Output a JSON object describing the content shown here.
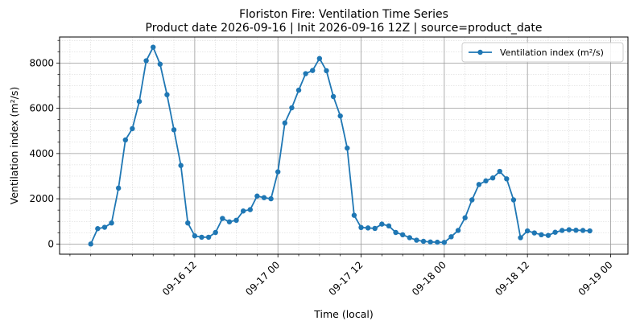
{
  "chart_data": {
    "type": "line",
    "title": "Floriston Fire: Ventilation Time Series",
    "subtitle": "Product date 2026-09-16 | Init 2026-09-16 12Z | source=product_date",
    "xlabel": "Time (local)",
    "ylabel": "Ventilation index (m²/s)",
    "x_tick_labels": [
      "09-16 12",
      "09-17 00",
      "09-17 12",
      "09-18 00",
      "09-18 12",
      "09-19 00"
    ],
    "y_ticks": [
      0,
      2000,
      4000,
      6000,
      8000
    ],
    "ylim": [
      -450,
      9150
    ],
    "xlim": [
      -7.5,
      74.5
    ],
    "x_unit": "hours since 09-16 00 (local)",
    "grid": true,
    "legend_position": "top-right",
    "series": [
      {
        "name": "Ventilation index (m²/s)",
        "color": "#1f77b4",
        "marker": "circle",
        "points": [
          [
            -3,
            0
          ],
          [
            -2,
            680
          ],
          [
            -1,
            740
          ],
          [
            0,
            930
          ],
          [
            1,
            2470
          ],
          [
            2,
            4600
          ],
          [
            3,
            5100
          ],
          [
            4,
            6300
          ],
          [
            5,
            8100
          ],
          [
            6,
            8700
          ],
          [
            7,
            7950
          ],
          [
            8,
            6600
          ],
          [
            9,
            5050
          ],
          [
            10,
            3470
          ],
          [
            11,
            930
          ],
          [
            12,
            360
          ],
          [
            13,
            300
          ],
          [
            14,
            300
          ],
          [
            15,
            510
          ],
          [
            16,
            1130
          ],
          [
            17,
            980
          ],
          [
            18,
            1050
          ],
          [
            19,
            1460
          ],
          [
            20,
            1520
          ],
          [
            21,
            2120
          ],
          [
            22,
            2050
          ],
          [
            23,
            2000
          ],
          [
            24,
            3190
          ],
          [
            25,
            5350
          ],
          [
            26,
            6020
          ],
          [
            27,
            6800
          ],
          [
            28,
            7530
          ],
          [
            29,
            7670
          ],
          [
            30,
            8200
          ],
          [
            31,
            7660
          ],
          [
            32,
            6520
          ],
          [
            33,
            5660
          ],
          [
            34,
            4240
          ],
          [
            35,
            1270
          ],
          [
            36,
            730
          ],
          [
            37,
            710
          ],
          [
            38,
            690
          ],
          [
            39,
            880
          ],
          [
            40,
            800
          ],
          [
            41,
            510
          ],
          [
            42,
            410
          ],
          [
            43,
            280
          ],
          [
            44,
            170
          ],
          [
            45,
            120
          ],
          [
            46,
            90
          ],
          [
            47,
            80
          ],
          [
            48,
            70
          ],
          [
            49,
            320
          ],
          [
            50,
            600
          ],
          [
            51,
            1160
          ],
          [
            52,
            1950
          ],
          [
            53,
            2630
          ],
          [
            54,
            2790
          ],
          [
            55,
            2920
          ],
          [
            56,
            3210
          ],
          [
            57,
            2880
          ],
          [
            58,
            1950
          ],
          [
            59,
            280
          ],
          [
            60,
            580
          ],
          [
            61,
            490
          ],
          [
            62,
            410
          ],
          [
            63,
            380
          ],
          [
            64,
            520
          ],
          [
            65,
            600
          ],
          [
            66,
            630
          ],
          [
            67,
            610
          ],
          [
            68,
            600
          ],
          [
            69,
            580
          ]
        ]
      }
    ]
  }
}
